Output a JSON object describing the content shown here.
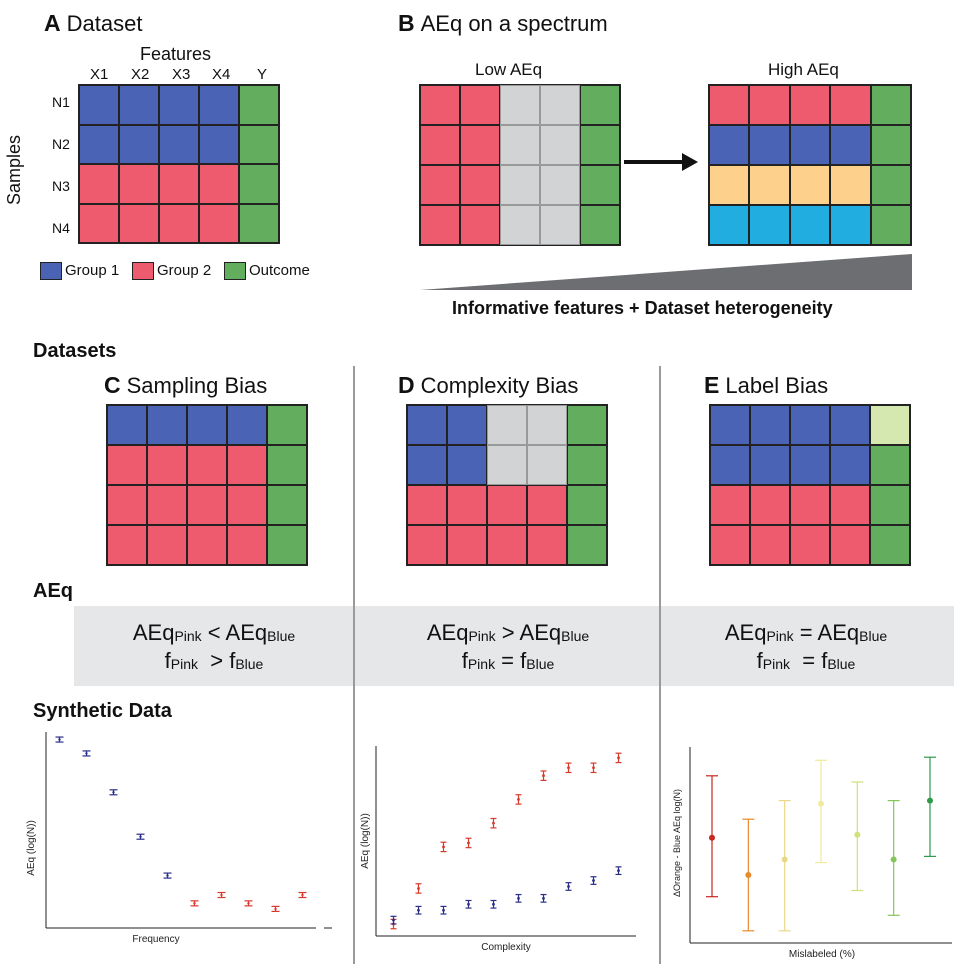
{
  "panelA": {
    "letter": "A",
    "title": "Dataset",
    "features_label": "Features",
    "columns": [
      "X1",
      "X2",
      "X3",
      "X4",
      "Y"
    ],
    "rows": [
      "N1",
      "N2",
      "N3",
      "N4"
    ],
    "samples_label": "Samples",
    "legend": [
      {
        "label": "Group 1",
        "color": "#4a63b5"
      },
      {
        "label": "Group 2",
        "color": "#ef5b6e"
      },
      {
        "label": "Outcome",
        "color": "#62ad5e"
      }
    ]
  },
  "panelB": {
    "letter": "B",
    "title": "AEq on a spectrum",
    "low_label": "Low AEq",
    "high_label": "High AEq",
    "spectrum_label": "Informative features + Dataset heterogeneity"
  },
  "datasets_heading": "Datasets",
  "panelC": {
    "letter": "C",
    "title": "Sampling Bias"
  },
  "panelD": {
    "letter": "D",
    "title": "Complexity Bias"
  },
  "panelE": {
    "letter": "E",
    "title": "Label Bias"
  },
  "aeq_heading": "AEq",
  "equations": {
    "c": {
      "l1a": "AEq",
      "l1s1": "Pink",
      "l1op": " < ",
      "l1b": "AEq",
      "l1s2": "Blue",
      "l2a": "f",
      "l2s1": "Pink",
      "l2op": "  > ",
      "l2b": "f",
      "l2s2": "Blue"
    },
    "d": {
      "l1a": "AEq",
      "l1s1": "Pink",
      "l1op": " > ",
      "l1b": "AEq",
      "l1s2": "Blue",
      "l2a": "f",
      "l2s1": "Pink",
      "l2op": " = ",
      "l2b": "f",
      "l2s2": "Blue"
    },
    "e": {
      "l1a": "AEq",
      "l1s1": "Pink",
      "l1op": " = ",
      "l1b": "AEq",
      "l1s2": "Blue",
      "l2a": "f",
      "l2s1": "Pink",
      "l2op": "  = ",
      "l2b": "f",
      "l2s2": "Blue"
    }
  },
  "synthetic_heading": "Synthetic Data",
  "colors": {
    "blue": "#4a63b5",
    "pink": "#ef5b6e",
    "green": "#62ad5e",
    "gray": "#d2d3d5",
    "orange": "#fdd08b",
    "cyan": "#22ade0",
    "light_green": "#d4e8b0",
    "band": "#e6e7e8"
  },
  "chart_data": [
    {
      "type": "scatter",
      "xlabel": "Frequency",
      "ylabel": "AEq (log(N))",
      "series": [
        {
          "color": "#2b2f8a",
          "points": [
            [
              1,
              9.5
            ],
            [
              2,
              9.0
            ],
            [
              3,
              7.6
            ],
            [
              4,
              6.0
            ],
            [
              5,
              4.6
            ]
          ]
        },
        {
          "color": "#d9392b",
          "points": [
            [
              6,
              3.6
            ],
            [
              7,
              3.9
            ],
            [
              8,
              3.6
            ],
            [
              9,
              3.4
            ],
            [
              10,
              3.9
            ]
          ]
        }
      ],
      "errors": 0.12
    },
    {
      "type": "scatter",
      "xlabel": "Complexity",
      "ylabel": "AEq (log(N))",
      "x": [
        1,
        2,
        3,
        4,
        5,
        6,
        7,
        8,
        9,
        10
      ],
      "series": [
        {
          "color": "#d9392b",
          "values": [
            0.3,
            2.1,
            4.2,
            4.4,
            5.4,
            6.6,
            7.8,
            8.2,
            8.2,
            8.7
          ],
          "err": 0.3
        },
        {
          "color": "#2b2f8a",
          "values": [
            0.5,
            1.0,
            1.0,
            1.3,
            1.3,
            1.6,
            1.6,
            2.2,
            2.5,
            3.0
          ],
          "err": 0.2
        }
      ]
    },
    {
      "type": "scatter",
      "xlabel": "Mislabeled (%)",
      "ylabel": "ΔOrange - Blue AEq log(N)",
      "series": [
        {
          "color": "#c8261e",
          "value": 4.4,
          "low": 2.5,
          "high": 6.4
        },
        {
          "color": "#e8892b",
          "value": 3.2,
          "low": 1.4,
          "high": 5.0
        },
        {
          "color": "#ead889",
          "value": 3.7,
          "low": 1.4,
          "high": 5.6
        },
        {
          "color": "#f0eaa0",
          "value": 5.5,
          "low": 3.6,
          "high": 6.9
        },
        {
          "color": "#cfe27a",
          "value": 4.5,
          "low": 2.7,
          "high": 6.2
        },
        {
          "color": "#84c65a",
          "value": 3.7,
          "low": 1.9,
          "high": 5.6
        },
        {
          "color": "#2f9a4a",
          "value": 5.6,
          "low": 3.8,
          "high": 7.0
        }
      ]
    }
  ]
}
